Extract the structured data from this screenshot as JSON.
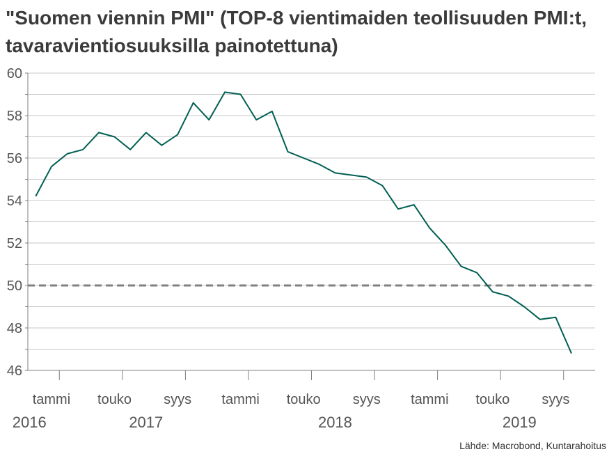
{
  "chart_data": {
    "type": "line",
    "title": "\"Suomen viennin PMI\" (TOP-8 vientimaiden teollisuuden PMI:t, tavaravientiosuuksilla painotettuna)",
    "source": "Lähde: Macrobond, Kuntarahoitus",
    "ylim": [
      46,
      60
    ],
    "y_ticks": [
      46,
      48,
      50,
      52,
      54,
      56,
      58,
      60
    ],
    "x_tick_labels": [
      {
        "month_index": 1,
        "label": "tammi"
      },
      {
        "month_index": 5,
        "label": "touko"
      },
      {
        "month_index": 9,
        "label": "syys"
      },
      {
        "month_index": 13,
        "label": "tammi"
      },
      {
        "month_index": 17,
        "label": "touko"
      },
      {
        "month_index": 21,
        "label": "syys"
      },
      {
        "month_index": 25,
        "label": "tammi"
      },
      {
        "month_index": 29,
        "label": "touko"
      },
      {
        "month_index": 33,
        "label": "syys"
      }
    ],
    "year_labels": [
      {
        "month_index": -0.4,
        "label": "2016"
      },
      {
        "month_index": 7,
        "label": "2017"
      },
      {
        "month_index": 19,
        "label": "2018"
      },
      {
        "month_index": 30.7,
        "label": "2019"
      }
    ],
    "x_range": [
      -0.5,
      35.5
    ],
    "reference_line": {
      "value": 50,
      "style": "dashed"
    },
    "series": [
      {
        "color": "#005f52",
        "x": [
          0,
          1,
          2,
          3,
          4,
          5,
          6,
          7,
          8,
          9,
          10,
          11,
          12,
          13,
          14,
          15,
          16,
          17,
          18,
          19,
          20,
          21,
          22,
          23,
          24,
          25,
          26,
          27,
          28,
          29,
          30,
          31,
          32,
          33,
          34
        ],
        "values": [
          54.2,
          55.6,
          56.2,
          56.4,
          57.2,
          57.0,
          56.4,
          57.2,
          56.6,
          57.1,
          58.6,
          57.8,
          59.1,
          59.0,
          57.8,
          58.2,
          56.3,
          56.0,
          55.7,
          55.3,
          55.2,
          55.1,
          54.7,
          53.6,
          53.8,
          52.7,
          51.9,
          50.9,
          50.6,
          49.7,
          49.5,
          49.0,
          48.4,
          48.5,
          46.8
        ]
      }
    ],
    "grid": true,
    "legend": "none"
  }
}
